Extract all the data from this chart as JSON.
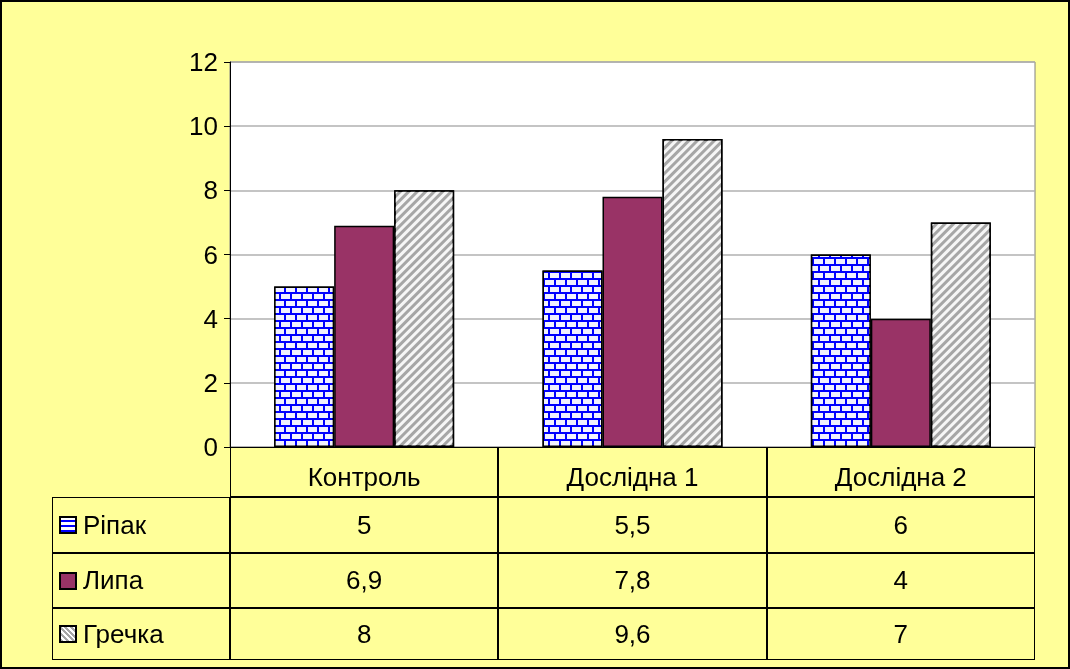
{
  "chart_data": {
    "type": "bar",
    "categories": [
      "Контроль",
      "Дослідна 1",
      "Дослідна 2"
    ],
    "series": [
      {
        "name": "Ріпак",
        "color": "#0000ff",
        "values": [
          5,
          5.5,
          6
        ],
        "value_labels": [
          "5",
          "5,5",
          "6"
        ]
      },
      {
        "name": "Липа",
        "color": "#993366",
        "values": [
          6.9,
          7.8,
          4
        ],
        "value_labels": [
          "6,9",
          "7,8",
          "4"
        ]
      },
      {
        "name": "Гречка",
        "color": "#a6a6a6",
        "values": [
          8,
          9.6,
          7
        ],
        "value_labels": [
          "8",
          "9,6",
          "7"
        ]
      }
    ],
    "ylim": [
      0,
      12
    ],
    "yticks": [
      0,
      2,
      4,
      6,
      8,
      10,
      12
    ],
    "grid": "y",
    "legend": "bottom"
  }
}
